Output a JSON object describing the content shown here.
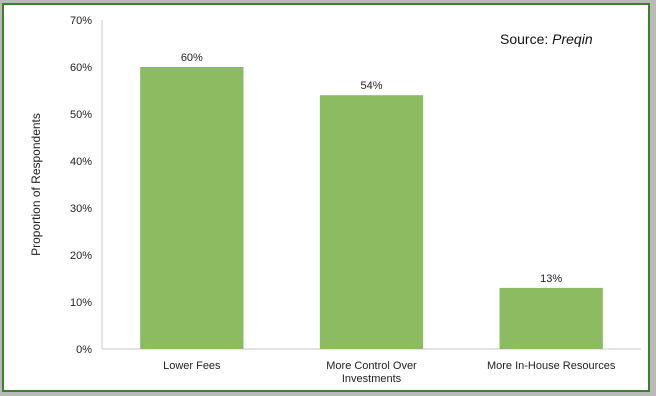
{
  "chart_data": {
    "type": "bar",
    "categories": [
      [
        "Lower Fees"
      ],
      [
        "More Control Over",
        "Investments"
      ],
      [
        "More In-House Resources"
      ]
    ],
    "values": [
      60,
      54,
      13
    ],
    "value_labels": [
      "60%",
      "54%",
      "13%"
    ],
    "ylabel": "Proportion of Respondents",
    "ylim": [
      0,
      70
    ],
    "yticks": [
      0,
      10,
      20,
      30,
      40,
      50,
      60,
      70
    ],
    "ytick_labels": [
      "0%",
      "10%",
      "20%",
      "30%",
      "40%",
      "50%",
      "60%",
      "70%"
    ],
    "grid": false,
    "bar_color": "#8dbb62"
  },
  "source": {
    "prefix": "Source: ",
    "name": "Preqin"
  }
}
